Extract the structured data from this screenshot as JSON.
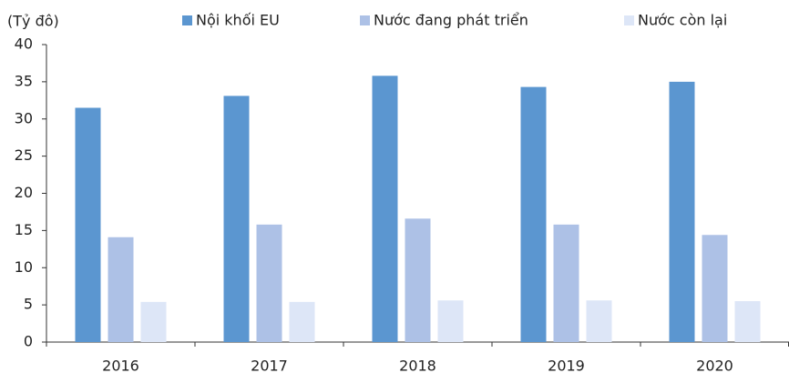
{
  "chart_data": {
    "type": "bar",
    "y_label": "(Tỷ đô)",
    "categories": [
      "2016",
      "2017",
      "2018",
      "2019",
      "2020"
    ],
    "series": [
      {
        "name": "Nội khối EU",
        "color": "#5b96d0",
        "values": [
          31.5,
          33.1,
          35.8,
          34.3,
          35.0
        ]
      },
      {
        "name": "Nước đang phát triển",
        "color": "#adc1e6",
        "values": [
          14.1,
          15.8,
          16.6,
          15.8,
          14.4
        ]
      },
      {
        "name": "Nước còn lại",
        "color": "#dde6f7",
        "values": [
          5.4,
          5.4,
          5.6,
          5.6,
          5.5
        ]
      }
    ],
    "ylim": [
      0,
      40
    ],
    "yticks": [
      0,
      5,
      10,
      15,
      20,
      25,
      30,
      35,
      40
    ],
    "grid": false,
    "legend": "top"
  }
}
